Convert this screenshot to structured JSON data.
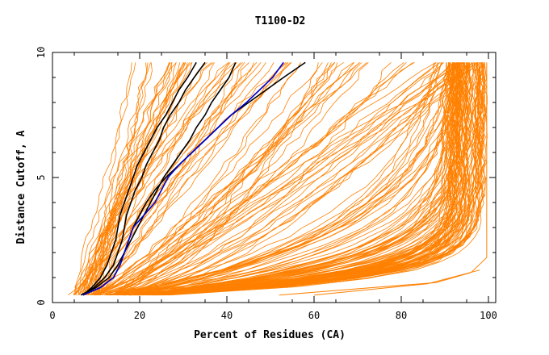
{
  "chart_data": {
    "type": "line",
    "title": "T1100-D2",
    "xlabel": "Percent of Residues (CA)",
    "ylabel": "Distance Cutoff, A",
    "xlim": [
      0,
      100
    ],
    "ylim": [
      0,
      10
    ],
    "x_ticks": [
      0,
      20,
      40,
      60,
      80,
      100
    ],
    "y_ticks": [
      0,
      5,
      10
    ],
    "grid": false,
    "legend": "none",
    "colors": {
      "background": "#ffffff",
      "bundle": "#ff8000",
      "highlight_black": "#000000",
      "highlight_blue": "#0000cc"
    },
    "highlighted_series": [
      {
        "color": "#000000",
        "points": [
          [
            7,
            0.3
          ],
          [
            9,
            0.6
          ],
          [
            11,
            1.0
          ],
          [
            12.5,
            1.5
          ],
          [
            13.5,
            2.0
          ],
          [
            14.5,
            2.5
          ],
          [
            15,
            3.0
          ],
          [
            15.5,
            3.5
          ],
          [
            16.5,
            4.0
          ],
          [
            17.5,
            4.5
          ],
          [
            18.5,
            5.0
          ],
          [
            19.5,
            5.5
          ],
          [
            21,
            6.0
          ],
          [
            22.5,
            6.5
          ],
          [
            24,
            7.0
          ],
          [
            26,
            7.5
          ],
          [
            27.5,
            8.0
          ],
          [
            29,
            8.5
          ],
          [
            31,
            9.0
          ],
          [
            33,
            9.6
          ]
        ]
      },
      {
        "color": "#000000",
        "points": [
          [
            7,
            0.3
          ],
          [
            9.5,
            0.6
          ],
          [
            12,
            1.0
          ],
          [
            14,
            1.5
          ],
          [
            15,
            2.0
          ],
          [
            16,
            2.5
          ],
          [
            16.5,
            3.0
          ],
          [
            17,
            3.5
          ],
          [
            18,
            4.0
          ],
          [
            19,
            4.5
          ],
          [
            20.5,
            5.0
          ],
          [
            21.5,
            5.5
          ],
          [
            23,
            6.0
          ],
          [
            24.5,
            6.5
          ],
          [
            25.5,
            7.0
          ],
          [
            27,
            7.5
          ],
          [
            29,
            8.0
          ],
          [
            30.5,
            8.5
          ],
          [
            32.5,
            9.0
          ],
          [
            35,
            9.6
          ]
        ]
      },
      {
        "color": "#000000",
        "points": [
          [
            6.5,
            0.3
          ],
          [
            10,
            0.6
          ],
          [
            13,
            1.0
          ],
          [
            15,
            1.5
          ],
          [
            16.5,
            2.0
          ],
          [
            18,
            2.5
          ],
          [
            19.5,
            3.0
          ],
          [
            21,
            3.5
          ],
          [
            22.5,
            4.0
          ],
          [
            24,
            4.5
          ],
          [
            25.5,
            5.0
          ],
          [
            27.5,
            5.5
          ],
          [
            29.5,
            6.0
          ],
          [
            31.5,
            6.5
          ],
          [
            33,
            7.0
          ],
          [
            35,
            7.5
          ],
          [
            36.5,
            8.0
          ],
          [
            38.5,
            8.5
          ],
          [
            40.5,
            9.0
          ],
          [
            42,
            9.6
          ]
        ]
      },
      {
        "color": "#000000",
        "points": [
          [
            7,
            0.3
          ],
          [
            11,
            0.6
          ],
          [
            14,
            1.0
          ],
          [
            15.5,
            1.5
          ],
          [
            16.5,
            2.0
          ],
          [
            17.5,
            2.5
          ],
          [
            18.5,
            3.0
          ],
          [
            20,
            3.5
          ],
          [
            21.5,
            4.0
          ],
          [
            23.5,
            4.5
          ],
          [
            26,
            5.0
          ],
          [
            29,
            5.5
          ],
          [
            32,
            6.0
          ],
          [
            35,
            6.5
          ],
          [
            38,
            7.0
          ],
          [
            41,
            7.5
          ],
          [
            45,
            8.0
          ],
          [
            49,
            8.5
          ],
          [
            53,
            9.0
          ],
          [
            58,
            9.6
          ]
        ]
      },
      {
        "color": "#0000cc",
        "points": [
          [
            7,
            0.3
          ],
          [
            11,
            0.6
          ],
          [
            14,
            1.0
          ],
          [
            15.5,
            1.5
          ],
          [
            16.5,
            2.0
          ],
          [
            17.5,
            2.5
          ],
          [
            18.5,
            3.0
          ],
          [
            21,
            3.5
          ],
          [
            23.5,
            4.0
          ],
          [
            25,
            4.5
          ],
          [
            26.5,
            5.0
          ],
          [
            29,
            5.5
          ],
          [
            32,
            6.0
          ],
          [
            35,
            6.5
          ],
          [
            38,
            7.0
          ],
          [
            41,
            7.5
          ],
          [
            44.5,
            8.0
          ],
          [
            47.5,
            8.5
          ],
          [
            50.5,
            9.0
          ],
          [
            53,
            9.6
          ]
        ]
      }
    ]
  }
}
